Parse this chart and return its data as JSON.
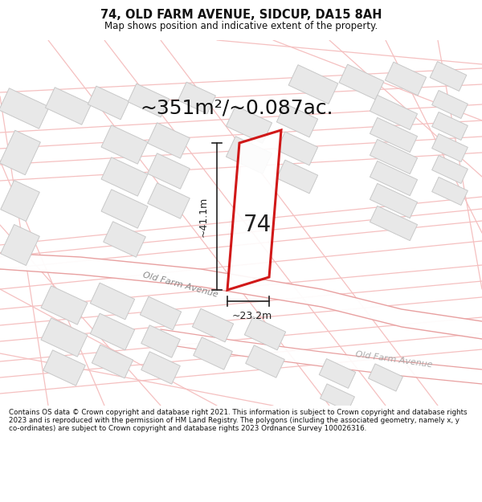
{
  "title": "74, OLD FARM AVENUE, SIDCUP, DA15 8AH",
  "subtitle": "Map shows position and indicative extent of the property.",
  "area_text": "~351m²/~0.087ac.",
  "dim_width": "~23.2m",
  "dim_height": "~41.1m",
  "number": "74",
  "footer": "Contains OS data © Crown copyright and database right 2021. This information is subject to Crown copyright and database rights 2023 and is reproduced with the permission of HM Land Registry. The polygons (including the associated geometry, namely x, y co-ordinates) are subject to Crown copyright and database rights 2023 Ordnance Survey 100026316.",
  "bg_color": "#ffffff",
  "map_bg": "#ffffff",
  "highlight_color": "#cc0000",
  "building_fill": "#e8e8e8",
  "building_edge": "#c8c8c8",
  "road_line_color": "#f0b8b8",
  "road_outline_color": "#e89898",
  "street_label_color": "#888888",
  "dim_color": "#222222",
  "text_color": "#111111"
}
